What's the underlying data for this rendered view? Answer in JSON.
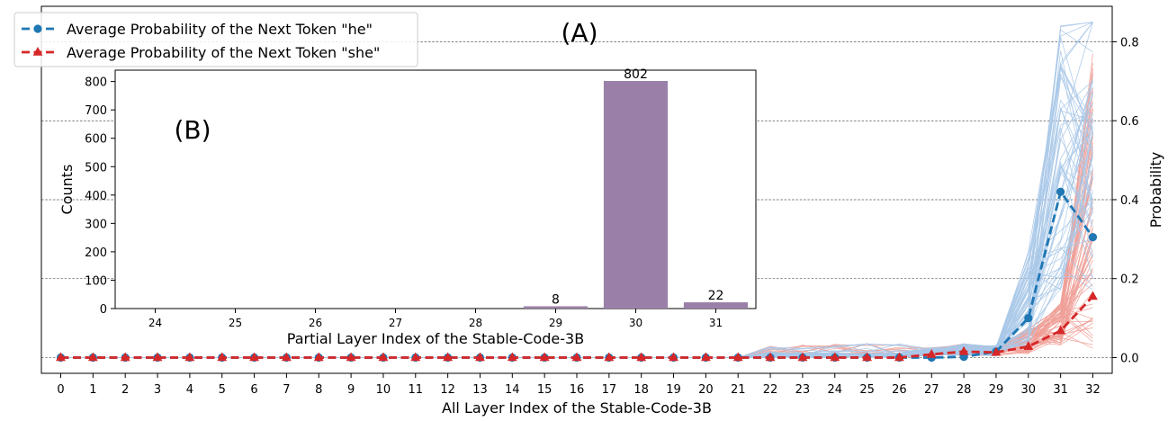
{
  "chart_data": [
    {
      "id": "A",
      "type": "line",
      "panel_label": "(A)",
      "xlabel": "All Layer Index of the Stable-Code-3B",
      "ylabel": "Probability",
      "x": [
        0,
        1,
        2,
        3,
        4,
        5,
        6,
        7,
        8,
        9,
        10,
        11,
        12,
        13,
        14,
        15,
        16,
        17,
        18,
        19,
        20,
        21,
        22,
        23,
        24,
        25,
        26,
        27,
        28,
        29,
        30,
        31,
        32
      ],
      "xlim": [
        -0.6,
        32.6
      ],
      "ylim": [
        -0.04,
        0.89
      ],
      "yticks": [
        0.0,
        0.2,
        0.4,
        0.6,
        0.8
      ],
      "ytick_labels": [
        "0.0",
        "0.2",
        "0.4",
        "0.6",
        "0.8"
      ],
      "y_axis_side": "right",
      "grid": "horizontal dashed at y ticks",
      "legend_position": "top-left",
      "series": [
        {
          "name": "Average Probability of the Next Token \"he\"",
          "color": "#1f77b4",
          "marker": "circle",
          "linestyle": "dashed",
          "values": [
            0,
            0,
            0,
            0,
            0,
            0,
            0,
            0,
            0,
            0,
            0,
            0,
            0,
            0,
            0,
            0,
            0,
            0,
            0,
            0,
            0,
            0,
            0,
            0,
            0,
            0,
            0,
            0,
            0.002,
            0.015,
            0.1,
            0.42,
            0.305
          ]
        },
        {
          "name": "Average Probability of the Next Token \"she\"",
          "color": "#d62728",
          "marker": "triangle",
          "linestyle": "dashed",
          "values": [
            0,
            0,
            0,
            0,
            0,
            0,
            0,
            0,
            0,
            0,
            0,
            0,
            0,
            0,
            0,
            0,
            0,
            0,
            0,
            0,
            0,
            0,
            0,
            0,
            0,
            0,
            0,
            0.008,
            0.015,
            0.013,
            0.028,
            0.068,
            0.155
          ]
        }
      ],
      "individual_traces": {
        "he": {
          "color": "#a8c8e8",
          "count": 60,
          "final_range": [
            0.2,
            0.85
          ]
        },
        "she": {
          "color": "#f0a098",
          "count": 60,
          "final_range": [
            0.02,
            0.74
          ]
        }
      }
    },
    {
      "id": "B",
      "type": "bar",
      "panel_label": "(B)",
      "xlabel": "Partial Layer Index of the Stable-Code-3B",
      "ylabel": "Counts",
      "categories": [
        "24",
        "25",
        "26",
        "27",
        "28",
        "29",
        "30",
        "31"
      ],
      "values": [
        0,
        0,
        0,
        0,
        0,
        8,
        802,
        22
      ],
      "value_labels": [
        "",
        "",
        "",
        "",
        "",
        "8",
        "802",
        "22"
      ],
      "ylim": [
        0,
        840
      ],
      "yticks": [
        0,
        100,
        200,
        300,
        400,
        500,
        600,
        700,
        800
      ],
      "ytick_labels": [
        "0",
        "100",
        "200",
        "300",
        "400",
        "500",
        "600",
        "700",
        "800"
      ],
      "bar_color": "#9a80a8"
    }
  ]
}
